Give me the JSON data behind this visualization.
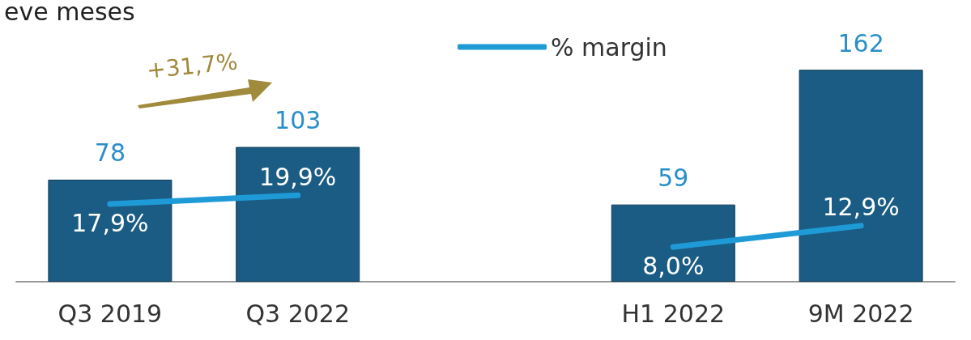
{
  "chart_data": {
    "type": "bar",
    "title": "eve meses",
    "categories": [
      "Q3 2019",
      "Q3 2022",
      null,
      "H1 2022",
      "9M 2022"
    ],
    "series": [
      {
        "color": "#1b5c84",
        "values": [
          78,
          103,
          null,
          59,
          162
        ],
        "value_labels": [
          "78",
          "103",
          null,
          "59",
          "162"
        ]
      },
      {
        "type": "line",
        "name": "% margin",
        "color": "#1e9bd7",
        "axis": "y2",
        "values": [
          17.9,
          19.9,
          null,
          8.0,
          12.9
        ],
        "value_labels": [
          "17,9%",
          "19,9%",
          null,
          "8,0%",
          "12,9%"
        ]
      }
    ],
    "annotations": [
      "+31,7%"
    ],
    "legend": "top",
    "grid": false,
    "marker": "none",
    "line_style": "solid"
  }
}
